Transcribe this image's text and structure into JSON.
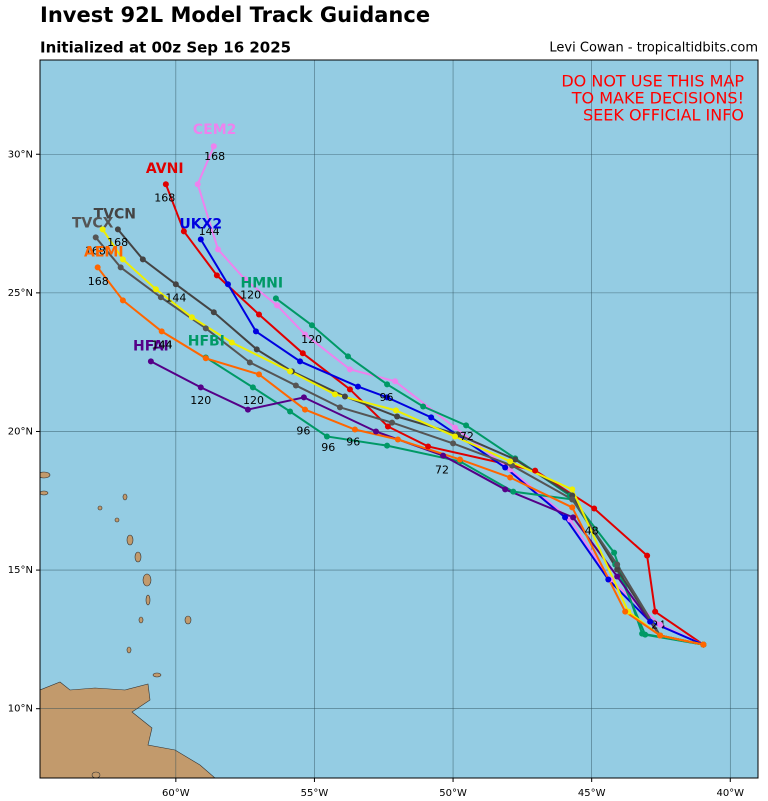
{
  "map": {
    "title": "Invest 92L Model Track Guidance",
    "subtitle": "Initialized at 00z Sep 16 2025",
    "credit": "Levi Cowan - tropicaltidbits.com",
    "warning": [
      "DO NOT USE THIS MAP",
      "TO MAKE DECISIONS!",
      "SEEK OFFICIAL INFO"
    ],
    "lonlim": [
      -64.9,
      -39.0
    ],
    "latlim": [
      7.5,
      33.4
    ],
    "lonticks": [
      {
        "value": -60,
        "label": "60°W"
      },
      {
        "value": -55,
        "label": "55°W"
      },
      {
        "value": -50,
        "label": "50°W"
      },
      {
        "value": -45,
        "label": "45°W"
      },
      {
        "value": -40,
        "label": "40°W"
      }
    ],
    "latticks": [
      {
        "value": 10,
        "label": "10°N"
      },
      {
        "value": 15,
        "label": "15°N"
      },
      {
        "value": 20,
        "label": "20°N"
      },
      {
        "value": 25,
        "label": "25°N"
      },
      {
        "value": 30,
        "label": "30°N"
      }
    ],
    "tracks": [
      {
        "name": "AVNI",
        "color": "#e00000",
        "label_at": [
          -60.4,
          29.46
        ],
        "points": [
          [
            -40.97,
            12.31
          ],
          [
            -42.71,
            13.5
          ],
          [
            -43.0,
            15.52
          ],
          [
            -44.91,
            17.22
          ],
          [
            -47.04,
            18.59
          ],
          [
            -50.9,
            19.46
          ],
          [
            -52.35,
            20.18
          ],
          [
            -53.72,
            21.52
          ],
          [
            -55.42,
            22.82
          ],
          [
            -57.0,
            24.22
          ],
          [
            -58.52,
            25.63
          ],
          [
            -59.71,
            27.22
          ],
          [
            -60.36,
            28.92
          ]
        ],
        "hour_labels": [
          {
            "text": "24",
            "at": [
              -42.6,
              13.0
            ]
          },
          {
            "text": "48",
            "at": [
              -45.0,
              16.4
            ]
          },
          {
            "text": "168",
            "at": [
              -60.4,
              28.4
            ]
          }
        ]
      },
      {
        "name": "CEM2",
        "color": "#ee82ee",
        "label_at": [
          -58.6,
          30.87
        ],
        "points": [
          [
            -40.97,
            12.31
          ],
          [
            -42.53,
            13.03
          ],
          [
            -44.33,
            14.66
          ],
          [
            -45.78,
            16.82
          ],
          [
            -47.94,
            18.63
          ],
          [
            -49.93,
            20.14
          ],
          [
            -52.09,
            21.81
          ],
          [
            -53.72,
            22.24
          ],
          [
            -55.34,
            23.5
          ],
          [
            -56.35,
            24.55
          ],
          [
            -57.51,
            25.49
          ],
          [
            -58.48,
            26.57
          ],
          [
            -59.21,
            28.92
          ],
          [
            -58.63,
            30.29
          ]
        ],
        "hour_labels": [
          {
            "text": "168",
            "at": [
              -58.6,
              29.9
            ]
          }
        ]
      },
      {
        "name": "UKX2",
        "color": "#0000e0",
        "label_at": [
          -59.1,
          27.47
        ],
        "points": [
          [
            -40.97,
            12.31
          ],
          [
            -42.89,
            13.14
          ],
          [
            -44.4,
            14.66
          ],
          [
            -45.96,
            16.9
          ],
          [
            -48.12,
            18.7
          ],
          [
            -50.79,
            20.51
          ],
          [
            -52.38,
            21.23
          ],
          [
            -53.43,
            21.62
          ],
          [
            -55.52,
            22.53
          ],
          [
            -57.11,
            23.61
          ],
          [
            -58.12,
            25.31
          ],
          [
            -59.1,
            26.93
          ]
        ],
        "hour_labels": [
          {
            "text": "120",
            "at": [
              -57.3,
              24.9
            ]
          },
          {
            "text": "144",
            "at": [
              -58.8,
              27.2
            ]
          }
        ]
      },
      {
        "name": "HMNI",
        "color": "#009966",
        "label_at": [
          -56.9,
          25.34
        ],
        "points": [
          [
            -40.97,
            12.31
          ],
          [
            -43.18,
            12.71
          ],
          [
            -44.19,
            15.63
          ],
          [
            -45.78,
            17.69
          ],
          [
            -47.76,
            19.03
          ],
          [
            -49.53,
            20.22
          ],
          [
            -51.08,
            20.9
          ],
          [
            -52.38,
            21.7
          ],
          [
            -53.79,
            22.71
          ],
          [
            -55.09,
            23.83
          ],
          [
            -56.39,
            24.8
          ]
        ],
        "hour_labels": [
          {
            "text": "72",
            "at": [
              -49.5,
              19.8
            ]
          },
          {
            "text": "96",
            "at": [
              -52.4,
              21.2
            ]
          },
          {
            "text": "120",
            "at": [
              -55.1,
              23.3
            ]
          }
        ]
      },
      {
        "name": "HFBI",
        "color": "#009966",
        "label_at": [
          -58.9,
          23.25
        ],
        "points": [
          [
            -40.97,
            12.31
          ],
          [
            -43.07,
            12.67
          ],
          [
            -44.15,
            15.2
          ],
          [
            -45.7,
            17.55
          ],
          [
            -47.83,
            17.83
          ],
          [
            -49.75,
            18.92
          ],
          [
            -52.38,
            19.49
          ],
          [
            -54.55,
            19.82
          ],
          [
            -55.88,
            20.72
          ],
          [
            -57.22,
            21.59
          ],
          [
            -58.92,
            22.67
          ]
        ],
        "hour_labels": [
          {
            "text": "96",
            "at": [
              -54.5,
              19.4
            ]
          },
          {
            "text": "120",
            "at": [
              -57.2,
              21.1
            ]
          }
        ]
      },
      {
        "name": "HFAI",
        "color": "#550088",
        "label_at": [
          -60.9,
          23.07
        ],
        "points": [
          [
            -40.97,
            12.31
          ],
          [
            -42.53,
            12.64
          ],
          [
            -44.08,
            14.77
          ],
          [
            -45.67,
            16.9
          ],
          [
            -48.12,
            17.91
          ],
          [
            -50.36,
            19.13
          ],
          [
            -52.78,
            20.0
          ],
          [
            -55.38,
            21.23
          ],
          [
            -57.4,
            20.79
          ],
          [
            -59.1,
            21.59
          ],
          [
            -60.9,
            22.53
          ]
        ],
        "hour_labels": [
          {
            "text": "72",
            "at": [
              -50.4,
              18.6
            ]
          },
          {
            "text": "96",
            "at": [
              -55.4,
              20.0
            ]
          },
          {
            "text": "120",
            "at": [
              -59.1,
              21.1
            ]
          },
          {
            "text": "144",
            "at": [
              -60.5,
              23.1
            ]
          }
        ]
      },
      {
        "name": "TVCN",
        "color": "#444444",
        "label_at": [
          -62.2,
          27.83
        ],
        "points": [
          [
            -40.97,
            12.31
          ],
          [
            -42.53,
            12.64
          ],
          [
            -44.08,
            15.02
          ],
          [
            -45.7,
            17.69
          ],
          [
            -47.76,
            18.99
          ],
          [
            -49.82,
            19.89
          ],
          [
            -52.02,
            20.54
          ],
          [
            -53.9,
            21.26
          ],
          [
            -55.81,
            22.17
          ],
          [
            -57.08,
            22.96
          ],
          [
            -58.63,
            24.3
          ],
          [
            -60.0,
            25.31
          ],
          [
            -61.19,
            26.21
          ],
          [
            -62.09,
            27.29
          ]
        ],
        "hour_labels": [
          {
            "text": "144",
            "at": [
              -60.0,
              24.8
            ]
          },
          {
            "text": "168",
            "at": [
              -62.1,
              26.8
            ]
          }
        ]
      },
      {
        "name": "TVCX",
        "color": "#555555",
        "label_at": [
          -63.0,
          27.5
        ],
        "points": [
          [
            -40.97,
            12.31
          ],
          [
            -42.53,
            12.64
          ],
          [
            -44.08,
            15.2
          ],
          [
            -45.7,
            17.55
          ],
          [
            -47.87,
            18.77
          ],
          [
            -50.0,
            19.57
          ],
          [
            -52.2,
            20.32
          ],
          [
            -54.08,
            20.87
          ],
          [
            -55.67,
            21.66
          ],
          [
            -57.33,
            22.49
          ],
          [
            -58.92,
            23.72
          ],
          [
            -60.54,
            24.84
          ],
          [
            -61.99,
            25.92
          ],
          [
            -62.89,
            27.0
          ]
        ],
        "hour_labels": [
          {
            "text": "168",
            "at": [
              -62.9,
              26.5
            ]
          }
        ]
      },
      {
        "color": "#eeee00",
        "points": [
          [
            -40.97,
            12.31
          ],
          [
            -42.53,
            12.64
          ],
          [
            -43.68,
            13.5
          ],
          [
            -45.7,
            17.91
          ],
          [
            -47.94,
            18.92
          ],
          [
            -49.93,
            19.82
          ],
          [
            -52.06,
            20.76
          ],
          [
            -54.26,
            21.34
          ],
          [
            -55.88,
            22.17
          ],
          [
            -57.98,
            23.21
          ],
          [
            -59.42,
            24.12
          ],
          [
            -60.72,
            25.13
          ],
          [
            -61.91,
            26.21
          ],
          [
            -62.64,
            27.29
          ]
        ],
        "hour_labels": []
      },
      {
        "name": "AEMI",
        "color": "#ff6600",
        "label_at": [
          -62.6,
          26.46
        ],
        "points": [
          [
            -40.97,
            12.31
          ],
          [
            -42.53,
            12.64
          ],
          [
            -43.79,
            13.5
          ],
          [
            -45.7,
            17.26
          ],
          [
            -47.94,
            18.34
          ],
          [
            -49.75,
            18.99
          ],
          [
            -51.99,
            19.71
          ],
          [
            -53.54,
            20.07
          ],
          [
            -55.34,
            20.79
          ],
          [
            -57.0,
            22.06
          ],
          [
            -58.92,
            22.64
          ],
          [
            -60.51,
            23.61
          ],
          [
            -61.91,
            24.73
          ],
          [
            -62.82,
            25.92
          ]
        ],
        "hour_labels": [
          {
            "text": "96",
            "at": [
              -53.6,
              19.6
            ]
          },
          {
            "text": "144",
            "at": [
              -60.5,
              23.1
            ]
          },
          {
            "text": "168",
            "at": [
              -62.8,
              25.4
            ]
          }
        ]
      }
    ]
  }
}
